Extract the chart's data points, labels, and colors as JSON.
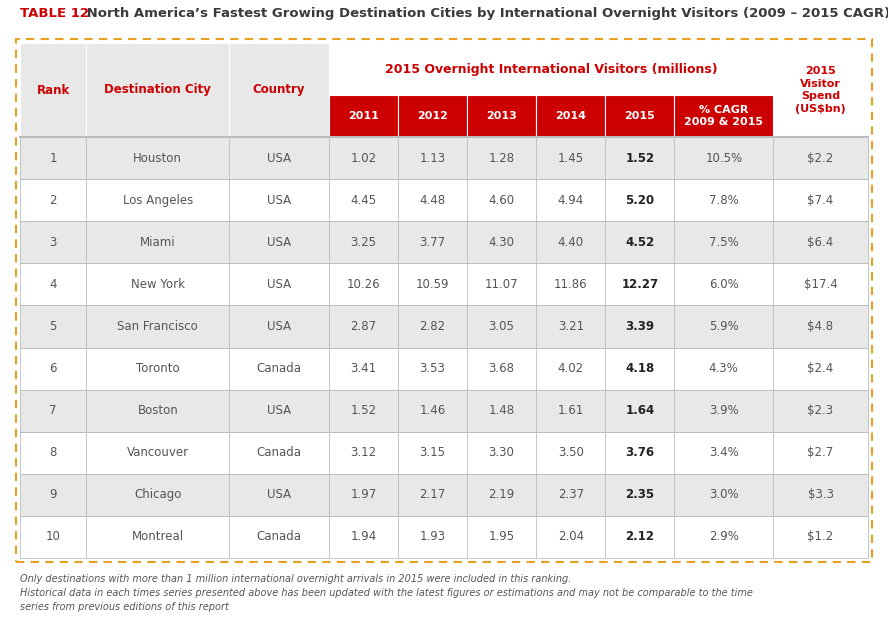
{
  "title_bold": "TABLE 12",
  "title_rest": " North America’s Fastest Growing Destination Cities by International Overnight Visitors (2009 – 2015 CAGR)",
  "header_span": "2015 Overnight International Visitors (millions)",
  "col_headers_left": [
    "Rank",
    "Destination City",
    "Country"
  ],
  "col_headers_red": [
    "2011",
    "2012",
    "2013",
    "2014",
    "2015",
    "% CAGR\n2009 & 2015"
  ],
  "header_last": "2015\nVisitor\nSpend\n(US$bn)",
  "rows": [
    [
      "1",
      "Houston",
      "USA",
      "1.02",
      "1.13",
      "1.28",
      "1.45",
      "1.52",
      "10.5%",
      "$2.2"
    ],
    [
      "2",
      "Los Angeles",
      "USA",
      "4.45",
      "4.48",
      "4.60",
      "4.94",
      "5.20",
      "7.8%",
      "$7.4"
    ],
    [
      "3",
      "Miami",
      "USA",
      "3.25",
      "3.77",
      "4.30",
      "4.40",
      "4.52",
      "7.5%",
      "$6.4"
    ],
    [
      "4",
      "New York",
      "USA",
      "10.26",
      "10.59",
      "11.07",
      "11.86",
      "12.27",
      "6.0%",
      "$17.4"
    ],
    [
      "5",
      "San Francisco",
      "USA",
      "2.87",
      "2.82",
      "3.05",
      "3.21",
      "3.39",
      "5.9%",
      "$4.8"
    ],
    [
      "6",
      "Toronto",
      "Canada",
      "3.41",
      "3.53",
      "3.68",
      "4.02",
      "4.18",
      "4.3%",
      "$2.4"
    ],
    [
      "7",
      "Boston",
      "USA",
      "1.52",
      "1.46",
      "1.48",
      "1.61",
      "1.64",
      "3.9%",
      "$2.3"
    ],
    [
      "8",
      "Vancouver",
      "Canada",
      "3.12",
      "3.15",
      "3.30",
      "3.50",
      "3.76",
      "3.4%",
      "$2.7"
    ],
    [
      "9",
      "Chicago",
      "USA",
      "1.97",
      "2.17",
      "2.19",
      "2.37",
      "2.35",
      "3.0%",
      "$3.3"
    ],
    [
      "10",
      "Montreal",
      "Canada",
      "1.94",
      "1.93",
      "1.95",
      "2.04",
      "2.12",
      "2.9%",
      "$1.2"
    ]
  ],
  "footnote1": "Only destinations with more than 1 million international overnight arrivals in 2015 were included in this ranking.",
  "footnote2": "Historical data in each times series presented above has been updated with the latest figures or estimations and may not be comparable to the time",
  "footnote3": "series from previous editions of this report",
  "color_red": "#CC0000",
  "color_light_gray": "#E8E8E8",
  "color_mid_gray": "#BBBBBB",
  "color_orange_border": "#E8A020",
  "color_text": "#555555",
  "bg_color": "#FFFFFF"
}
